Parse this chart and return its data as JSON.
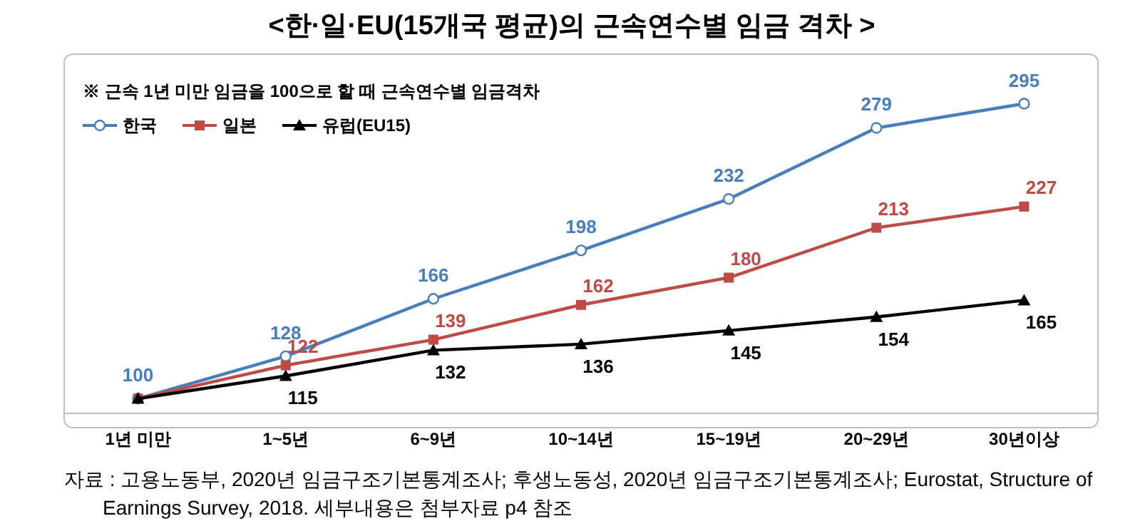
{
  "chart_data": {
    "type": "line",
    "title": "<한·일·EU(15개국 평균)의 근속연수별 임금 격차 >",
    "subtitle": "※ 근속 1년 미만 임금을 100으로 할 때 근속연수별 임금격차",
    "categories": [
      "1년 미만",
      "1~5년",
      "6~9년",
      "10~14년",
      "15~19년",
      "20~29년",
      "30년이상"
    ],
    "series": [
      {
        "name": "한국",
        "color": "#4a7ebb",
        "marker": "circle",
        "values": [
          100,
          128,
          166,
          198,
          232,
          279,
          295
        ],
        "value_labels": [
          "100",
          "128",
          "166",
          "198",
          "232",
          "279",
          "295"
        ]
      },
      {
        "name": "일본",
        "color": "#be4b48",
        "marker": "square",
        "values": [
          100,
          122,
          139,
          162,
          180,
          213,
          227
        ],
        "value_labels": [
          null,
          "122",
          "139",
          "162",
          "180",
          "213",
          "227"
        ]
      },
      {
        "name": "유럽(EU15)",
        "color": "#000000",
        "marker": "triangle",
        "values": [
          100,
          115,
          132,
          136,
          145,
          154,
          165
        ],
        "value_labels": [
          null,
          "115",
          "132",
          "136",
          "145",
          "154",
          "165"
        ]
      }
    ],
    "legend": "top left",
    "annotations": [
      "자료 : 고용노동부, 2020년 임금구조기본통계조사; 후생노동성, 2020년 임금구조기본통계조사; Eurostat, Structure of Earnings Survey, 2018. 세부내용은 첨부자료 p4 참조"
    ]
  }
}
